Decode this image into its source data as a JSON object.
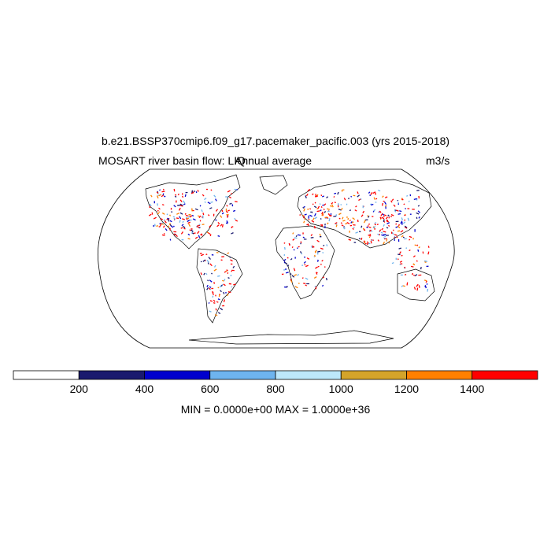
{
  "title": "b.e21.BSSP370cmip6.f09_g17.pacemaker_pacific.003 (yrs 2015-2018)",
  "left_subtitle": "MOSART river basin flow: LIQ",
  "center_subtitle": "Annual average",
  "units": "m3/s",
  "colorbar": {
    "colors": [
      "#ffffff",
      "#1a1a6e",
      "#0000cd",
      "#6eb4ee",
      "#bde8fb",
      "#d4a42a",
      "#ff8000",
      "#ff0000"
    ],
    "tick_labels": [
      "200",
      "400",
      "600",
      "800",
      "1000",
      "1200",
      "1400"
    ]
  },
  "minmax": "MIN = 0.0000e+00 MAX = 1.0000e+36",
  "projection": "Robinson"
}
